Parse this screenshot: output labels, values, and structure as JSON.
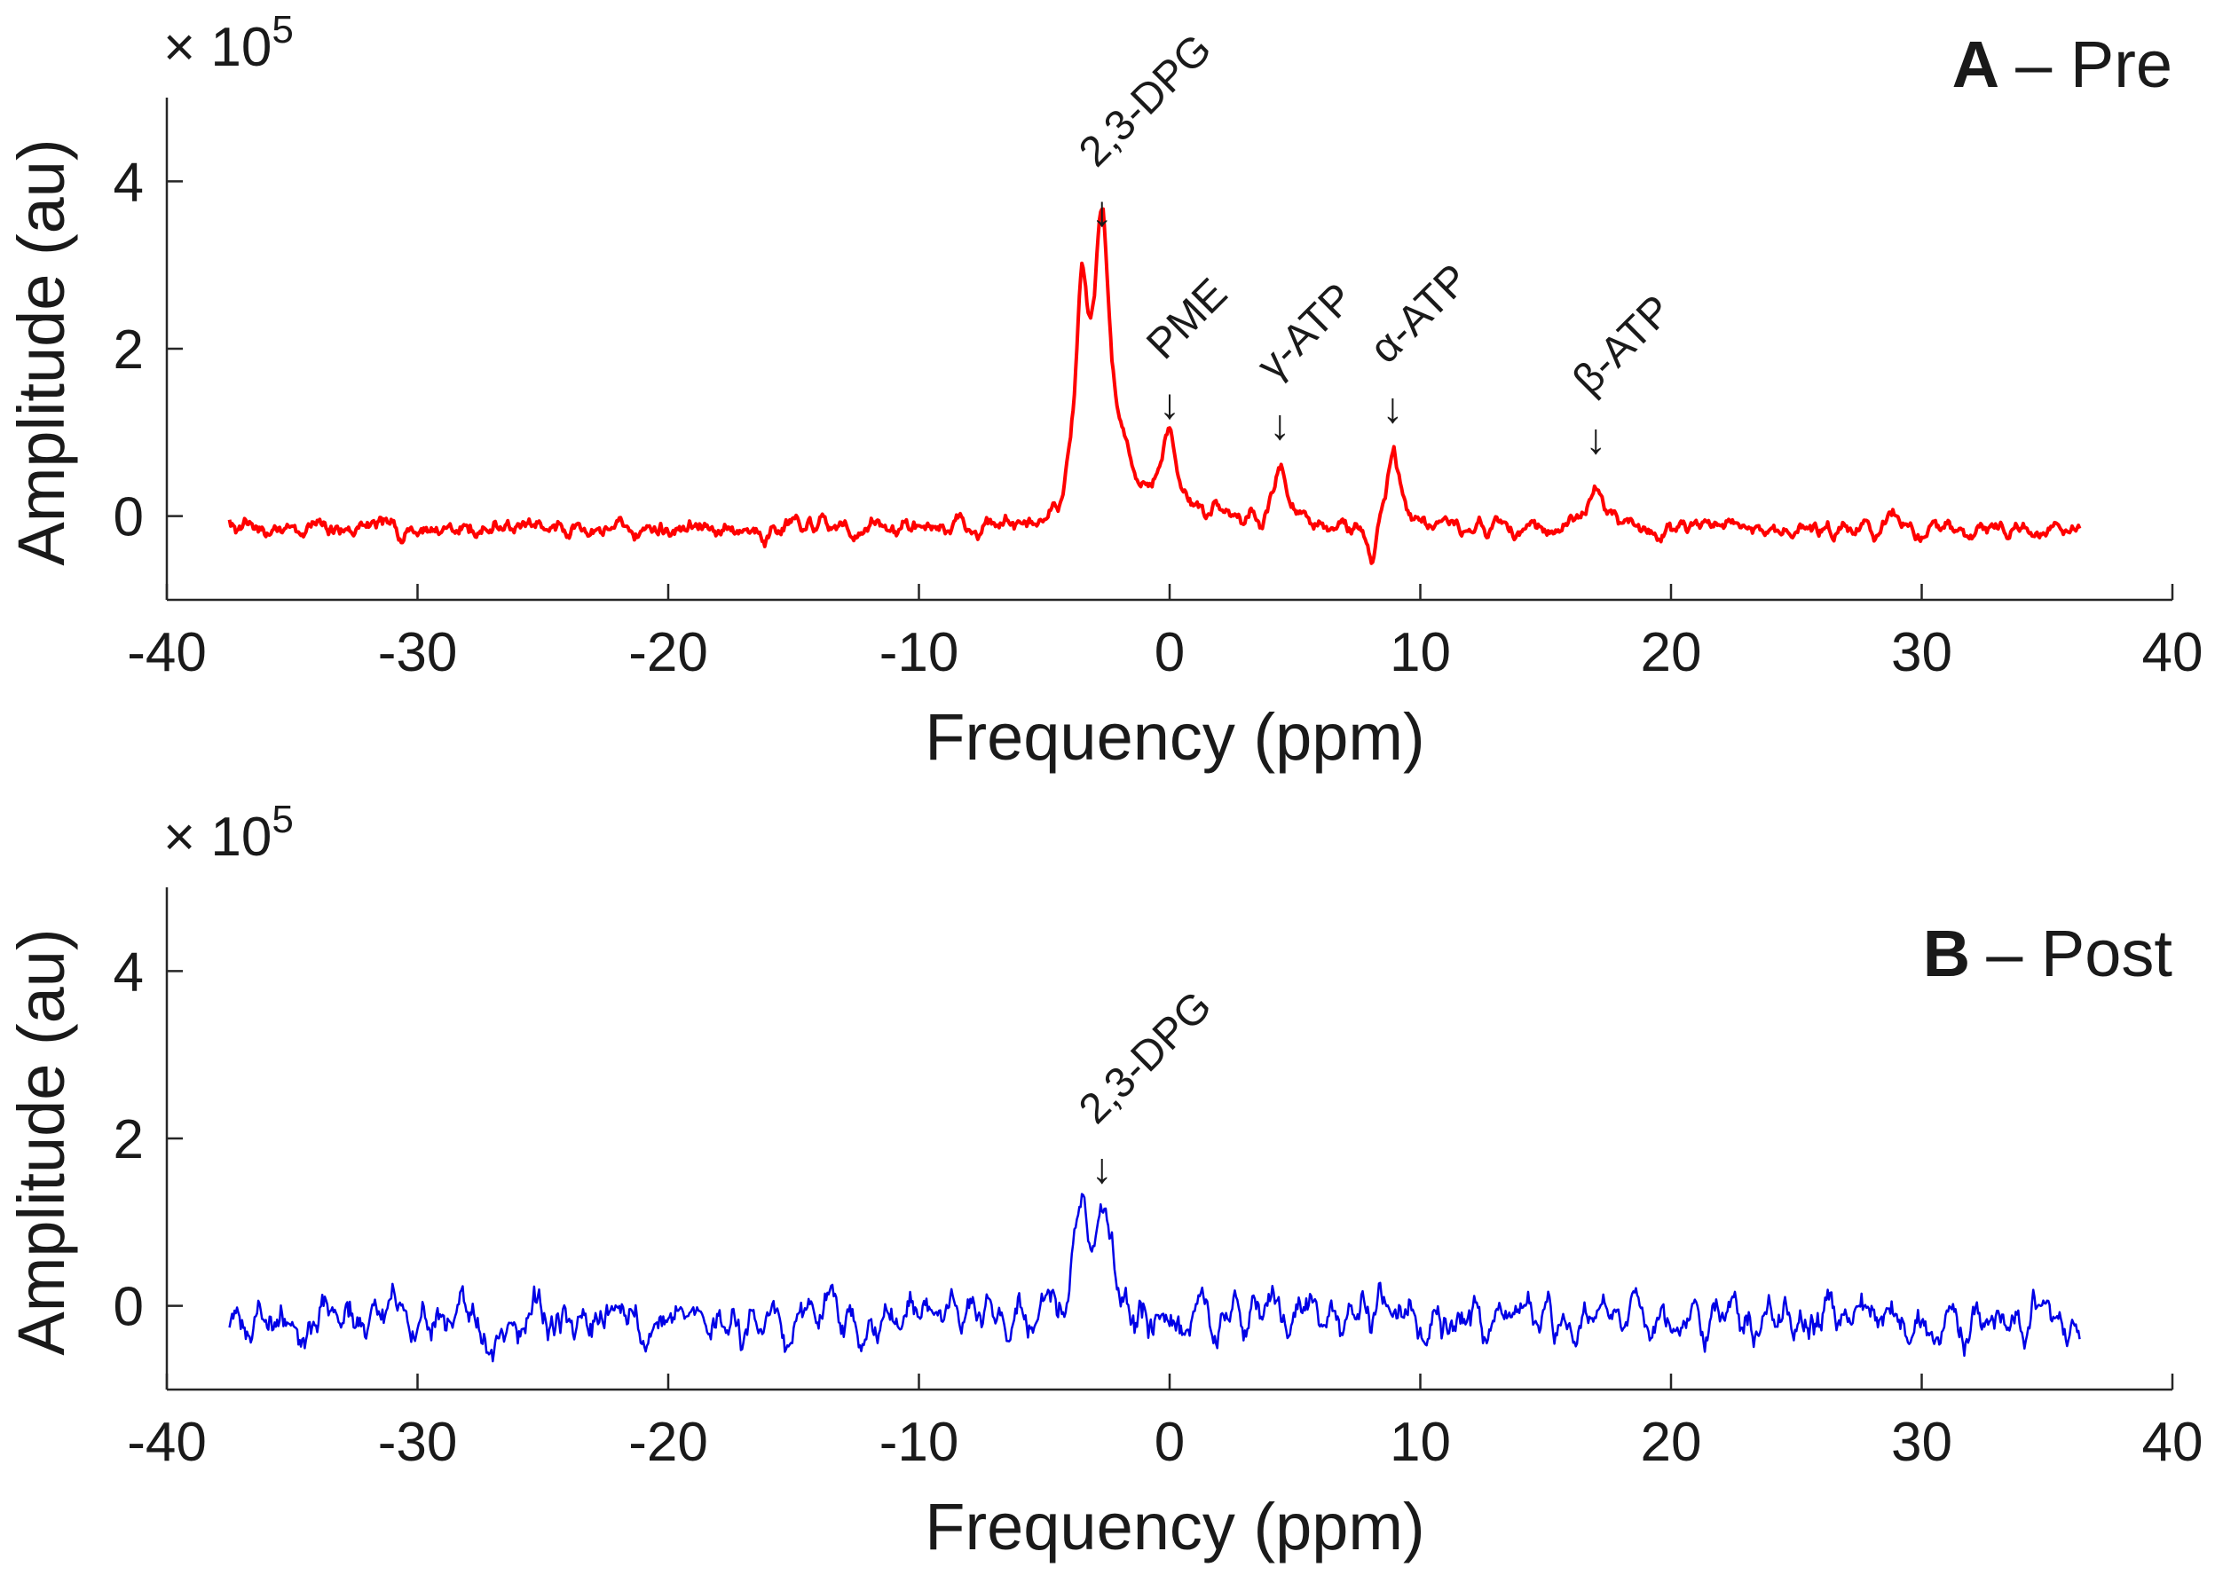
{
  "chart_data": [
    {
      "type": "line",
      "panel_letter": "A",
      "panel_text": "– Pre",
      "exponent_label": "× 10",
      "exponent_power": "5",
      "xlabel": "Frequency (ppm)",
      "ylabel": "Amplitude (au)",
      "xlim": [
        -40,
        40
      ],
      "ylim": [
        -1,
        5
      ],
      "xticks": [
        -40,
        -30,
        -20,
        -10,
        0,
        10,
        20,
        30,
        40
      ],
      "yticks": [
        0,
        2,
        4
      ],
      "line_color": "#ff0000",
      "noise_amplitude": 0.17,
      "noise_seed": 7,
      "series_range": [
        -37.5,
        36.3
      ],
      "peaks": [
        {
          "center": -3.5,
          "height": 2.45,
          "width": 0.3
        },
        {
          "center": -2.7,
          "height": 3.3,
          "width": 0.38
        },
        {
          "center": -1.8,
          "height": 0.5,
          "width": 0.6
        },
        {
          "center": 0.0,
          "height": 1.0,
          "width": 0.45
        },
        {
          "center": 4.4,
          "height": 0.75,
          "width": 0.35
        },
        {
          "center": 8.1,
          "height": -0.42,
          "width": 0.2
        },
        {
          "center": 8.9,
          "height": 0.95,
          "width": 0.35
        },
        {
          "center": 17.0,
          "height": 0.58,
          "width": 0.4
        }
      ],
      "annotations": [
        {
          "label": "2,3-DPG",
          "x": -2.7,
          "y": 3.3
        },
        {
          "label": "PME",
          "x": 0.0,
          "y": 1.0
        },
        {
          "label": "γ-ATP",
          "x": 4.4,
          "y": 0.75
        },
        {
          "label": "α-ATP",
          "x": 8.9,
          "y": 0.95
        },
        {
          "label": "β-ATP",
          "x": 17.0,
          "y": 0.58
        }
      ]
    },
    {
      "type": "line",
      "panel_letter": "B",
      "panel_text": "– Post",
      "exponent_label": "× 10",
      "exponent_power": "5",
      "xlabel": "Frequency (ppm)",
      "ylabel": "Amplitude (au)",
      "xlim": [
        -40,
        40
      ],
      "ylim": [
        -1,
        5
      ],
      "xticks": [
        -40,
        -30,
        -20,
        -10,
        0,
        10,
        20,
        30,
        40
      ],
      "yticks": [
        0,
        2,
        4
      ],
      "line_color": "#0000e6",
      "noise_amplitude": 0.4,
      "noise_seed": 23,
      "series_range": [
        -37.5,
        36.3
      ],
      "peaks": [
        {
          "center": -3.5,
          "height": 1.2,
          "width": 0.3
        },
        {
          "center": -2.7,
          "height": 1.25,
          "width": 0.35
        }
      ],
      "annotations": [
        {
          "label": "2,3-DPG",
          "x": -2.7,
          "y": 1.3
        }
      ]
    }
  ]
}
